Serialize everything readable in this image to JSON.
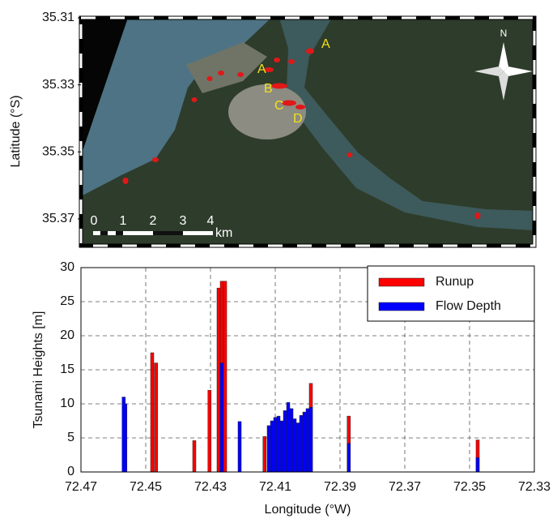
{
  "chart_data": [
    {
      "type": "map",
      "ylabel": "Latitude (°S)",
      "ylim": [
        35.31,
        35.378
      ],
      "yticks": [
        35.31,
        35.33,
        35.35,
        35.37
      ],
      "point_labels": [
        "A",
        "A",
        "B",
        "C",
        "D"
      ],
      "north": "N",
      "scale_labels": [
        "0",
        "1",
        "2",
        "3",
        "4"
      ],
      "scale_unit": "km"
    },
    {
      "type": "bar",
      "xlabel": "Longitude (°W)",
      "ylabel": "Tsunami Heights [m]",
      "xlim": [
        72.47,
        72.33
      ],
      "xticks": [
        72.47,
        72.45,
        72.43,
        72.41,
        72.39,
        72.37,
        72.35,
        72.33
      ],
      "ylim": [
        0,
        30
      ],
      "yticks": [
        0,
        5,
        10,
        15,
        20,
        25,
        30
      ],
      "grid": true,
      "legend": "upper right",
      "bar_width": 0.001,
      "series": [
        {
          "name": "Runup",
          "color": "#ff0000",
          "x": [
            72.448,
            72.4468,
            72.435,
            72.4303,
            72.4275,
            72.4265,
            72.4255,
            72.4133,
            72.399,
            72.3873,
            72.3475
          ],
          "values": [
            17.5,
            16,
            4.6,
            12,
            27,
            28,
            28,
            5.2,
            13,
            8.2,
            4.7
          ]
        },
        {
          "name": "Flow Depth",
          "color": "#0000ff",
          "x": [
            72.4568,
            72.4563,
            72.4265,
            72.421,
            72.412,
            72.411,
            72.41,
            72.409,
            72.408,
            72.407,
            72.406,
            72.405,
            72.404,
            72.403,
            72.402,
            72.401,
            72.4,
            72.399,
            72.3873,
            72.3475
          ],
          "values": [
            11,
            10,
            16,
            7.4,
            6.8,
            7.5,
            8,
            8.2,
            7.5,
            9,
            10.2,
            9.3,
            7.8,
            7.2,
            8.3,
            8.8,
            9.3,
            9.5,
            4.2,
            2.1
          ]
        }
      ]
    }
  ]
}
